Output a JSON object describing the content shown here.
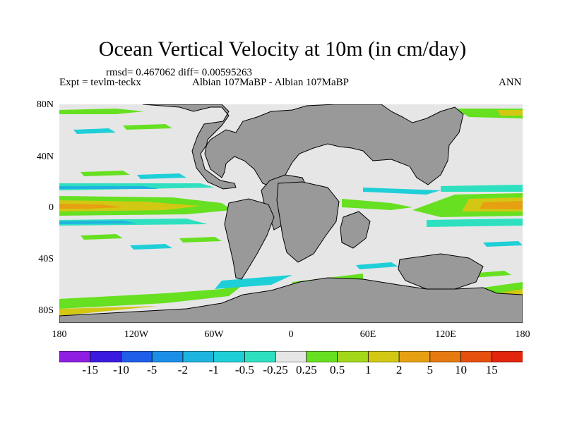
{
  "title": "Ocean Vertical Velocity at 10m (in cm/day)",
  "stats_line": "rmsd= 0.467062 diff= 0.00595263",
  "left_label": "Expt = tevlm-teckx",
  "center_label": "Albian   107MaBP - Albian   107MaBP",
  "right_label": "ANN",
  "lat_ticks": [
    "80N",
    "40N",
    "0",
    "40S",
    "80S"
  ],
  "lon_ticks": [
    "180",
    "120W",
    "60W",
    "0",
    "60E",
    "120E",
    "180"
  ],
  "colorbar": {
    "labels": [
      "-15",
      "-10",
      "-5",
      "-2",
      "-1",
      "-0.5",
      "-0.25",
      "0.25",
      "0.5",
      "1",
      "2",
      "5",
      "10",
      "15"
    ],
    "colors": [
      "#8f1fe0",
      "#3b1ae0",
      "#1f5ee8",
      "#1b8fe8",
      "#1fb4e0",
      "#1fcfd8",
      "#2fe0c0",
      "#e6e6e6",
      "#66e020",
      "#a3d81a",
      "#d2c814",
      "#e6a012",
      "#e67a10",
      "#e6500e",
      "#e0260c"
    ]
  },
  "colors": {
    "ocean_zero": "#e6e6e6",
    "land": "#999999",
    "coast": "#000000"
  }
}
